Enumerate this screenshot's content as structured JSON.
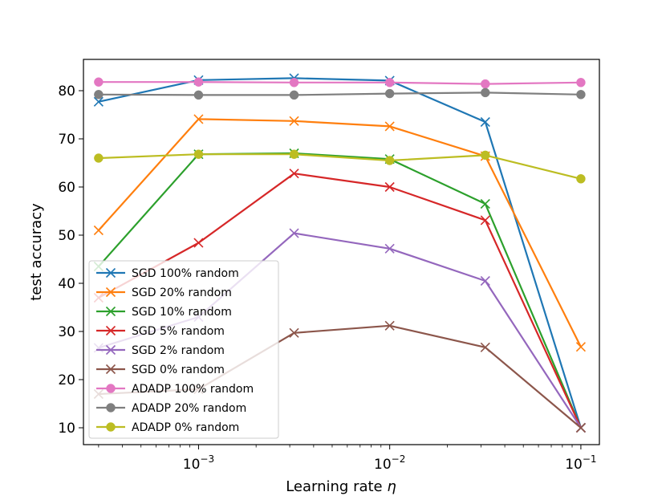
{
  "chart_data": {
    "type": "line",
    "title": "",
    "xlabel": "Learning rate η",
    "ylabel": "test accuracy",
    "xscale": "log",
    "xlim": [
      0.00025,
      0.125
    ],
    "ylim": [
      6.5,
      86.5
    ],
    "grid": false,
    "x": [
      0.0003,
      0.001,
      0.003162,
      0.01,
      0.031623,
      0.1
    ],
    "x_ticks": [
      {
        "value": 0.001,
        "base": "10",
        "exp": "−3"
      },
      {
        "value": 0.01,
        "base": "10",
        "exp": "−2"
      },
      {
        "value": 0.1,
        "base": "10",
        "exp": "−1"
      }
    ],
    "y_ticks": [
      "10",
      "20",
      "30",
      "40",
      "50",
      "60",
      "70",
      "80"
    ],
    "legend_position": "lower-left",
    "series": [
      {
        "name": "SGD 100% random",
        "color": "#1f77b4",
        "marker": "x",
        "values": [
          77.7,
          82.2,
          82.6,
          82.1,
          73.5,
          10.0
        ]
      },
      {
        "name": "SGD 20% random",
        "color": "#ff7f0e",
        "marker": "x",
        "values": [
          51.0,
          74.1,
          73.7,
          72.6,
          66.4,
          26.8
        ]
      },
      {
        "name": "SGD 10% random",
        "color": "#2ca02c",
        "marker": "x",
        "values": [
          43.5,
          66.8,
          67.0,
          65.8,
          56.5,
          10.0
        ]
      },
      {
        "name": "SGD 5% random",
        "color": "#d62728",
        "marker": "x",
        "values": [
          37.0,
          48.4,
          62.8,
          60.0,
          53.1,
          10.0
        ]
      },
      {
        "name": "SGD 2% random",
        "color": "#9467bd",
        "marker": "x",
        "values": [
          26.6,
          33.0,
          50.4,
          47.2,
          40.5,
          10.0
        ]
      },
      {
        "name": "SGD 0% random",
        "color": "#8c564b",
        "marker": "x",
        "values": [
          17.0,
          18.0,
          29.7,
          31.2,
          26.7,
          10.0
        ]
      },
      {
        "name": "ADADP 100% random",
        "color": "#e377c2",
        "marker": "o",
        "values": [
          81.8,
          81.8,
          81.7,
          81.7,
          81.4,
          81.7
        ]
      },
      {
        "name": "ADADP 20% random",
        "color": "#7f7f7f",
        "marker": "o",
        "values": [
          79.2,
          79.1,
          79.1,
          79.4,
          79.6,
          79.2
        ]
      },
      {
        "name": "ADADP 0% random",
        "color": "#bcbd22",
        "marker": "o",
        "values": [
          66.0,
          66.8,
          66.8,
          65.5,
          66.6,
          61.7
        ]
      }
    ]
  }
}
